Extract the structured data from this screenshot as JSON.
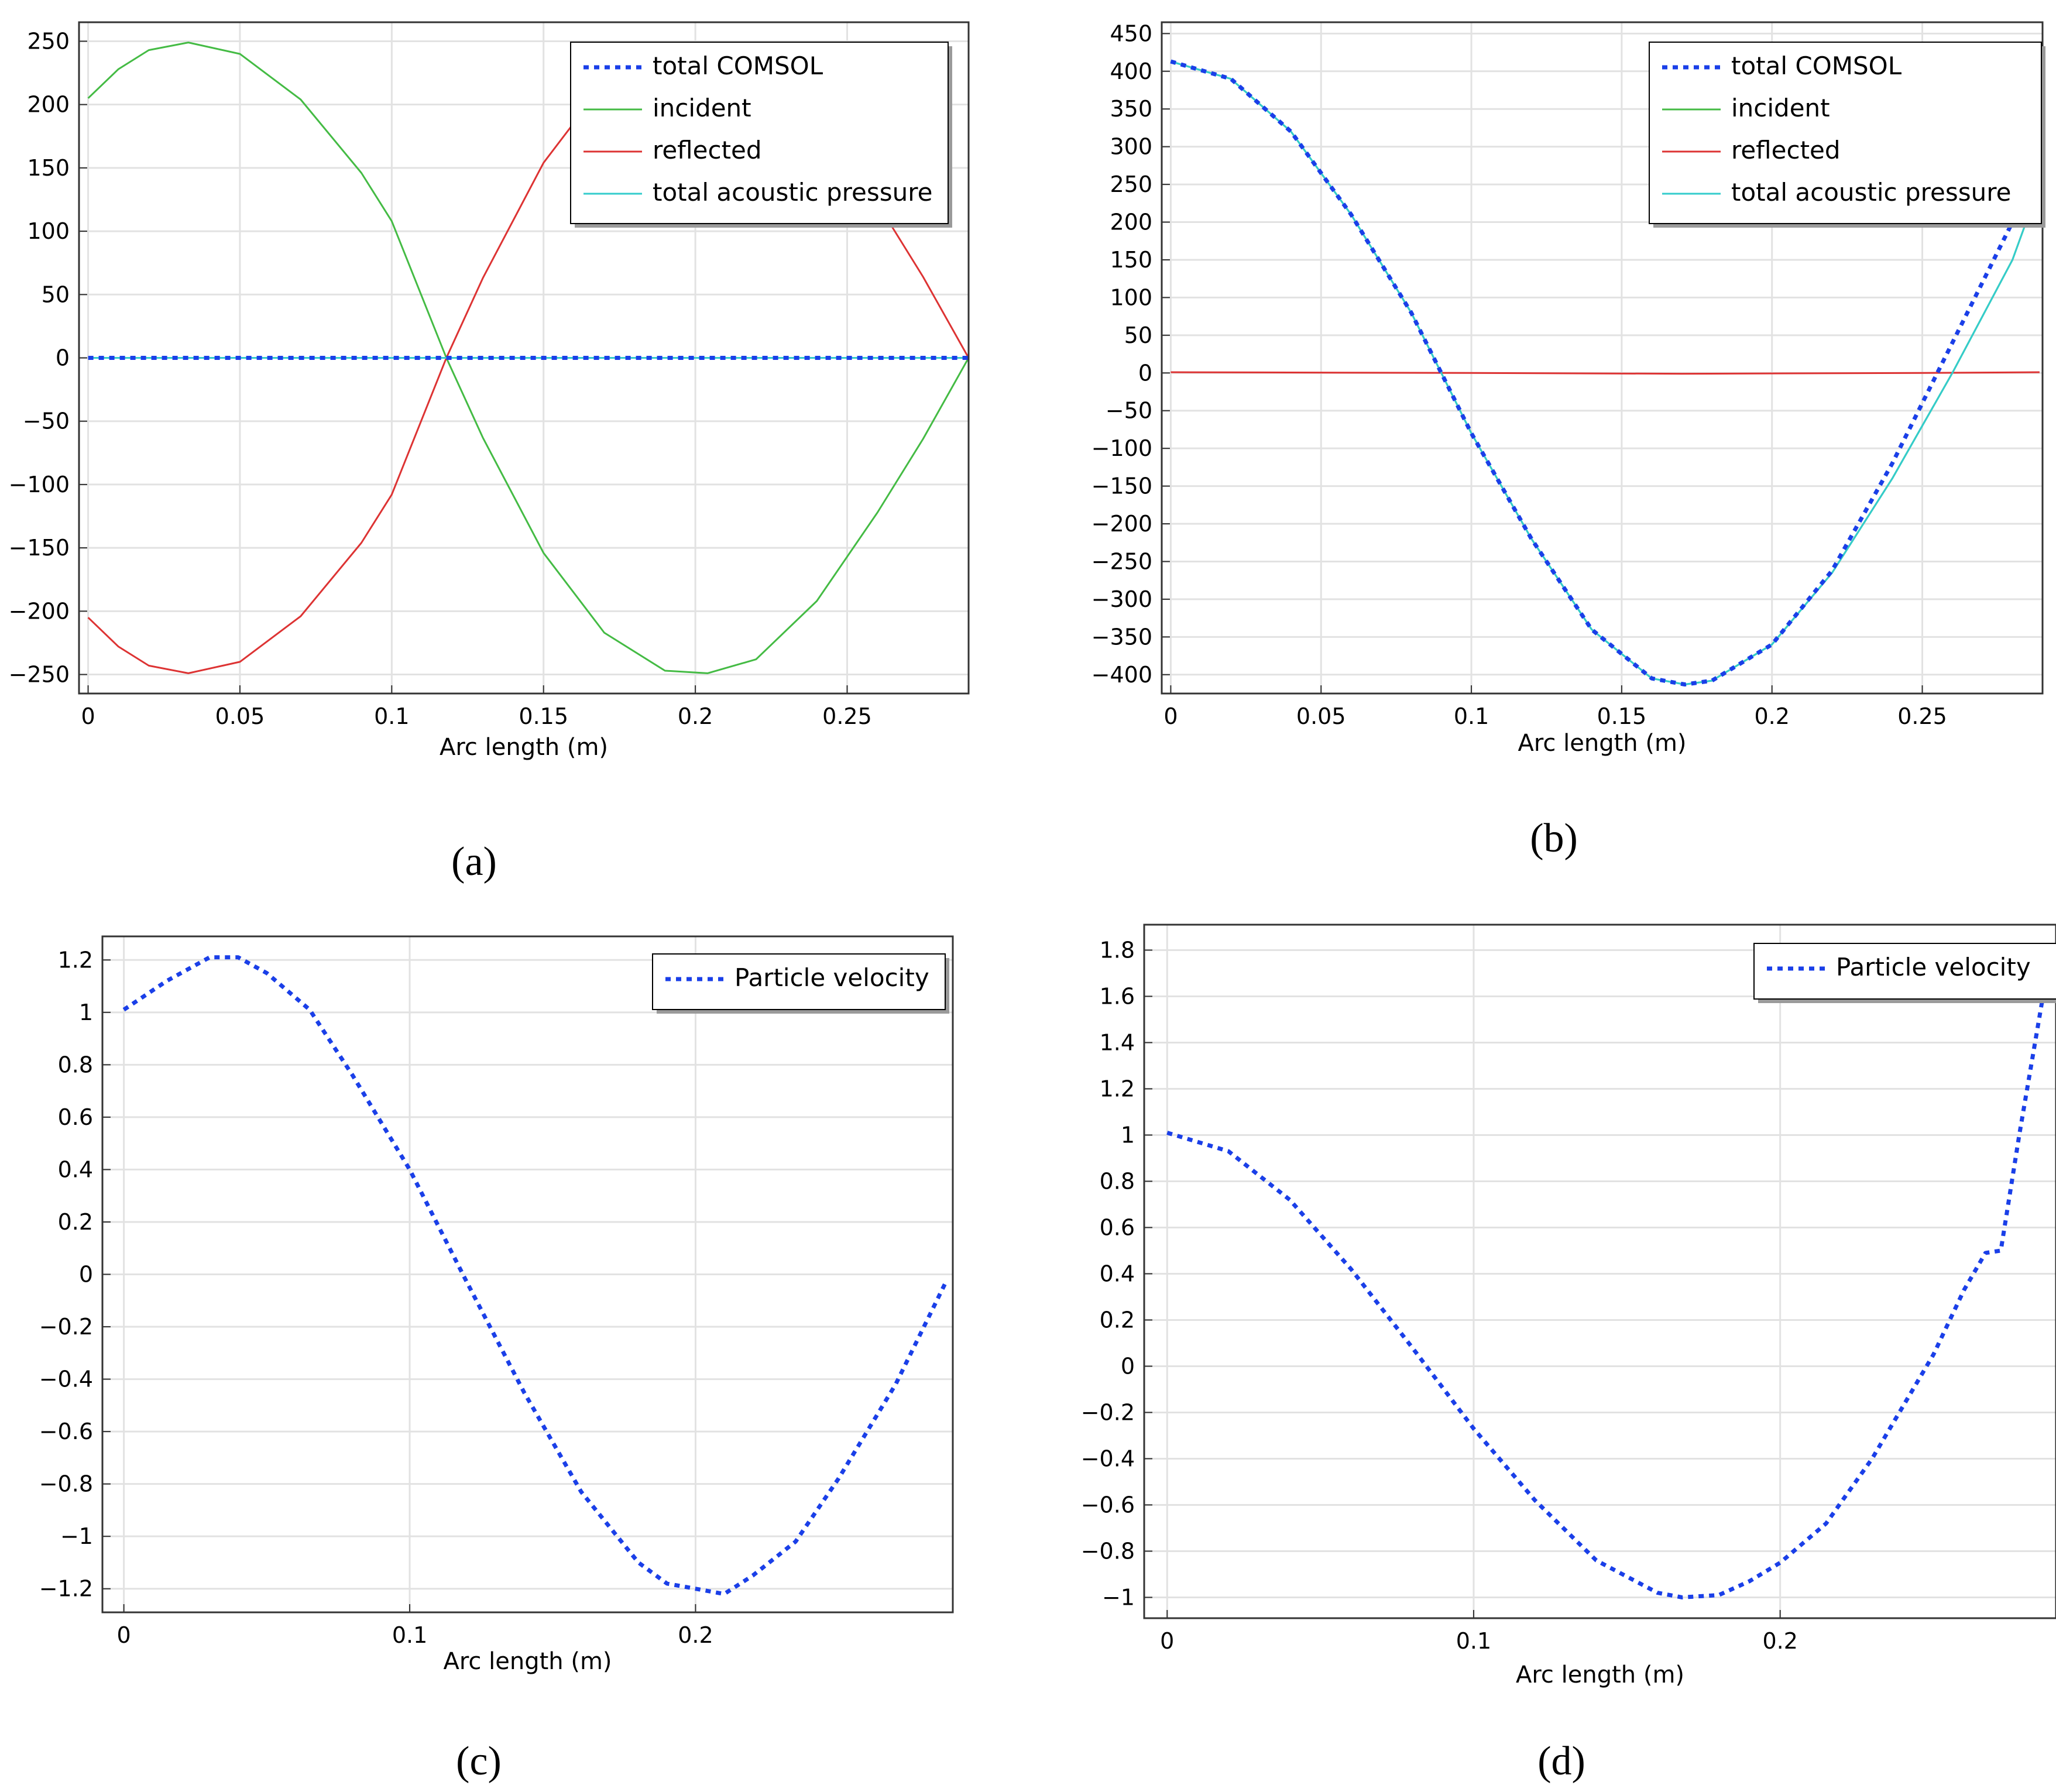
{
  "chart_data": [
    {
      "type": "line",
      "panel_label": "(a)",
      "xlabel": "Arc length (m)",
      "ylabel": "",
      "xlim": [
        -0.003,
        0.29
      ],
      "ylim": [
        -265,
        265
      ],
      "x_ticks": [
        0,
        0.05,
        0.1,
        0.15,
        0.2,
        0.25
      ],
      "x_tick_labels": [
        "0",
        "0.05",
        "0.1",
        "0.15",
        "0.2",
        "0.25"
      ],
      "y_ticks": [
        250,
        200,
        150,
        100,
        50,
        0,
        -50,
        -100,
        -150,
        -200,
        -250
      ],
      "y_tick_labels": [
        "250",
        "200",
        "150",
        "100",
        "50",
        "0",
        "−50",
        "−100",
        "−150",
        "−200",
        "−250"
      ],
      "grid": true,
      "legend_position": "top-right",
      "series": [
        {
          "name": "incident",
          "color": "#44bb44",
          "style": "solid",
          "x": [
            0,
            0.01,
            0.02,
            0.033,
            0.05,
            0.07,
            0.09,
            0.1,
            0.118,
            0.13,
            0.15,
            0.17,
            0.19,
            0.204,
            0.22,
            0.24,
            0.26,
            0.275,
            0.29
          ],
          "values": [
            205,
            228,
            243,
            249,
            240,
            204,
            146,
            108,
            0,
            -63,
            -154,
            -217,
            -247,
            -249,
            -238,
            -192,
            -122,
            -64,
            0
          ]
        },
        {
          "name": "reflected",
          "color": "#dd3333",
          "style": "solid",
          "x": [
            0,
            0.01,
            0.02,
            0.033,
            0.05,
            0.07,
            0.09,
            0.1,
            0.118,
            0.13,
            0.15,
            0.17,
            0.19,
            0.204,
            0.22,
            0.24,
            0.26,
            0.275,
            0.29
          ],
          "values": [
            -205,
            -228,
            -243,
            -249,
            -240,
            -204,
            -146,
            -108,
            0,
            63,
            154,
            217,
            247,
            249,
            238,
            192,
            122,
            64,
            0
          ]
        },
        {
          "name": "total acoustic pressure",
          "color": "#33cccc",
          "style": "solid",
          "x": [
            0,
            0.29
          ],
          "values": [
            0,
            0
          ]
        },
        {
          "name": "total COMSOL",
          "color": "#1a3fe8",
          "style": "dotted",
          "x": [
            0,
            0.29
          ],
          "values": [
            0,
            0
          ]
        }
      ],
      "legend": [
        "total COMSOL",
        "incident",
        "reflected",
        "total acoustic pressure"
      ]
    },
    {
      "type": "line",
      "panel_label": "(b)",
      "xlabel": "Arc length (m)",
      "ylabel": "",
      "xlim": [
        -0.003,
        0.29
      ],
      "ylim": [
        -425,
        465
      ],
      "x_ticks": [
        0,
        0.05,
        0.1,
        0.15,
        0.2,
        0.25
      ],
      "x_tick_labels": [
        "0",
        "0.05",
        "0.1",
        "0.15",
        "0.2",
        "0.25"
      ],
      "y_ticks": [
        450,
        400,
        350,
        300,
        250,
        200,
        150,
        100,
        50,
        0,
        -50,
        -100,
        -150,
        -200,
        -250,
        -300,
        -350,
        -400
      ],
      "y_tick_labels": [
        "450",
        "400",
        "350",
        "300",
        "250",
        "200",
        "150",
        "100",
        "50",
        "0",
        "−50",
        "−100",
        "−150",
        "−200",
        "−250",
        "−300",
        "−350",
        "−400"
      ],
      "grid": true,
      "legend_position": "top-right",
      "series": [
        {
          "name": "incident",
          "color": "#44bb44",
          "style": "solid",
          "x": [
            0,
            0.02,
            0.04,
            0.06,
            0.08,
            0.1,
            0.12,
            0.14,
            0.16,
            0.171,
            0.18,
            0.2,
            0.22,
            0.24,
            0.26,
            0.28,
            0.285
          ],
          "values": [
            413,
            390,
            320,
            210,
            80,
            -80,
            -220,
            -340,
            -405,
            -413,
            -408,
            -360,
            -265,
            -140,
            0,
            150,
            205
          ]
        },
        {
          "name": "reflected",
          "color": "#dd3333",
          "style": "solid",
          "x": [
            0,
            0.1,
            0.17,
            0.25,
            0.289
          ],
          "values": [
            1,
            0,
            -1,
            0,
            1
          ]
        },
        {
          "name": "total acoustic pressure",
          "color": "#33cccc",
          "style": "solid",
          "x": [
            0,
            0.02,
            0.04,
            0.06,
            0.08,
            0.1,
            0.12,
            0.14,
            0.16,
            0.171,
            0.18,
            0.2,
            0.22,
            0.24,
            0.26,
            0.28,
            0.285
          ],
          "values": [
            413,
            390,
            320,
            210,
            80,
            -80,
            -220,
            -340,
            -405,
            -413,
            -408,
            -360,
            -265,
            -140,
            0,
            150,
            205
          ]
        },
        {
          "name": "total COMSOL",
          "color": "#1a3fe8",
          "style": "dotted",
          "x": [
            0,
            0.02,
            0.04,
            0.06,
            0.08,
            0.1,
            0.12,
            0.14,
            0.16,
            0.171,
            0.18,
            0.2,
            0.22,
            0.24,
            0.255,
            0.27,
            0.28
          ],
          "values": [
            413,
            390,
            320,
            210,
            80,
            -80,
            -220,
            -340,
            -405,
            -413,
            -408,
            -360,
            -262,
            -120,
            0,
            120,
            200
          ]
        }
      ],
      "legend": [
        "total COMSOL",
        "incident",
        "reflected",
        "total acoustic pressure"
      ]
    },
    {
      "type": "line",
      "panel_label": "(c)",
      "xlabel": "Arc length (m)",
      "ylabel": "",
      "xlim": [
        -0.0075,
        0.29
      ],
      "ylim": [
        -1.29,
        1.29
      ],
      "x_ticks": [
        0,
        0.1,
        0.2
      ],
      "x_tick_labels": [
        "0",
        "0.1",
        "0.2"
      ],
      "y_ticks": [
        1.2,
        1,
        0.8,
        0.6,
        0.4,
        0.2,
        0,
        -0.2,
        -0.4,
        -0.6,
        -0.8,
        -1,
        -1.2
      ],
      "y_tick_labels": [
        "1.2",
        "1",
        "0.8",
        "0.6",
        "0.4",
        "0.2",
        "0",
        "−0.2",
        "−0.4",
        "−0.6",
        "−0.8",
        "−1",
        "−1.2"
      ],
      "grid": true,
      "legend_position": "top-right",
      "series": [
        {
          "name": "Particle velocity",
          "color": "#1a3fe8",
          "style": "dotted",
          "x": [
            0,
            0.015,
            0.03,
            0.04,
            0.05,
            0.065,
            0.08,
            0.1,
            0.12,
            0.14,
            0.16,
            0.18,
            0.19,
            0.2,
            0.21,
            0.22,
            0.235,
            0.25,
            0.27,
            0.288
          ],
          "values": [
            1.01,
            1.12,
            1.21,
            1.21,
            1.15,
            1.01,
            0.76,
            0.4,
            -0.03,
            -0.45,
            -0.83,
            -1.1,
            -1.18,
            -1.2,
            -1.22,
            -1.15,
            -1.02,
            -0.78,
            -0.42,
            -0.02
          ]
        }
      ],
      "legend": [
        "Particle velocity"
      ]
    },
    {
      "type": "line",
      "panel_label": "(d)",
      "xlabel": "Arc length (m)",
      "ylabel": "",
      "xlim": [
        -0.0075,
        0.29
      ],
      "ylim": [
        -1.09,
        1.91
      ],
      "x_ticks": [
        0,
        0.1,
        0.2
      ],
      "x_tick_labels": [
        "0",
        "0.1",
        "0.2"
      ],
      "y_ticks": [
        1.8,
        1.6,
        1.4,
        1.2,
        1,
        0.8,
        0.6,
        0.4,
        0.2,
        0,
        -0.2,
        -0.4,
        -0.6,
        -0.8,
        -1
      ],
      "y_tick_labels": [
        "1.8",
        "1.6",
        "1.4",
        "1.2",
        "1",
        "0.8",
        "0.6",
        "0.4",
        "0.2",
        "0",
        "−0.2",
        "−0.4",
        "−0.6",
        "−0.8",
        "−1"
      ],
      "grid": true,
      "legend_position": "top-right",
      "series": [
        {
          "name": "Particle velocity",
          "color": "#1a3fe8",
          "style": "dotted",
          "x": [
            0,
            0.02,
            0.04,
            0.06,
            0.08,
            0.1,
            0.12,
            0.14,
            0.16,
            0.168,
            0.18,
            0.19,
            0.2,
            0.215,
            0.23,
            0.25,
            0.26,
            0.267,
            0.272,
            0.278,
            0.286
          ],
          "values": [
            1.01,
            0.93,
            0.72,
            0.42,
            0.08,
            -0.27,
            -0.58,
            -0.84,
            -0.98,
            -1.0,
            -0.99,
            -0.93,
            -0.85,
            -0.68,
            -0.4,
            0.05,
            0.33,
            0.49,
            0.5,
            1.0,
            1.62
          ]
        }
      ],
      "legend": [
        "Particle velocity"
      ]
    }
  ]
}
